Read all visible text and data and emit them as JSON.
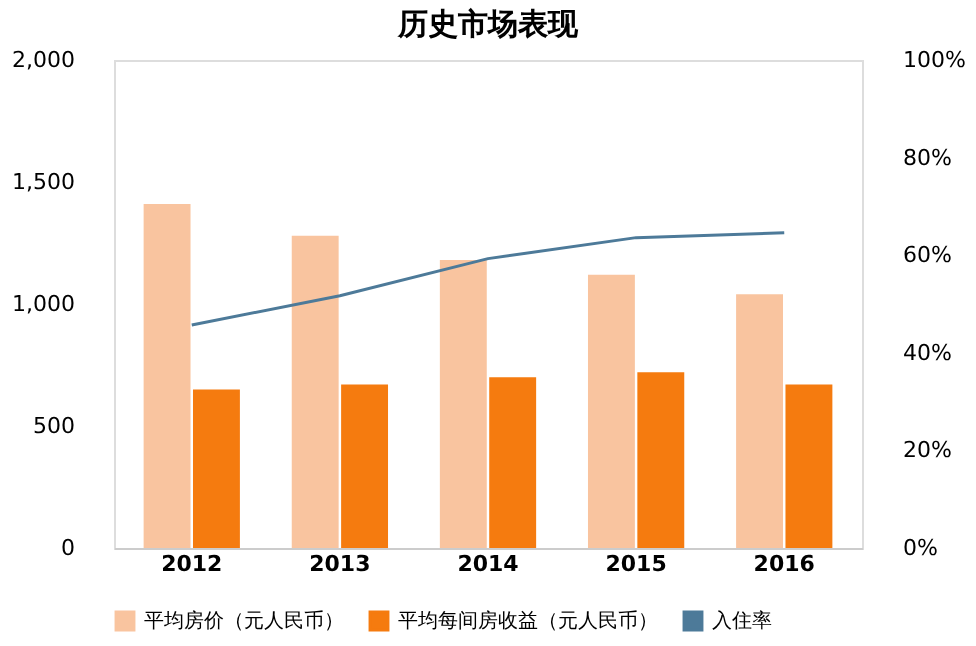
{
  "chart_data": {
    "type": "bar",
    "title": "历史市场表现",
    "categories": [
      "2012",
      "2013",
      "2014",
      "2015",
      "2016"
    ],
    "series": [
      {
        "name": "平均房价（元人民币）",
        "color": "#f9c49f",
        "values": [
          1410,
          1280,
          1180,
          1120,
          1040
        ]
      },
      {
        "name": "平均每间房收益（元人民币）",
        "color": "#f57b0f",
        "values": [
          650,
          670,
          700,
          720,
          670
        ]
      },
      {
        "name": "入住率",
        "type": "line",
        "axis": "y2",
        "color": "#4d7a99",
        "values": [
          45.7,
          51.7,
          59.3,
          63.6,
          64.6
        ]
      }
    ],
    "ylim": [
      0,
      2000
    ],
    "yticks": [
      0,
      {
        "value": 500,
        "label": "500"
      },
      {
        "value": 1000,
        "label": "1,000"
      },
      {
        "value": 1500,
        "label": "1,500"
      },
      {
        "value": 2000,
        "label": "2,000"
      }
    ],
    "y2lim": [
      0,
      100
    ],
    "y2ticks": [
      {
        "value": 0,
        "label": "0%"
      },
      {
        "value": 20,
        "label": "20%"
      },
      {
        "value": 40,
        "label": "40%"
      },
      {
        "value": 60,
        "label": "60%"
      },
      {
        "value": 80,
        "label": "80%"
      },
      {
        "value": 100,
        "label": "100%"
      }
    ],
    "grid": false,
    "legend": "bottom"
  }
}
